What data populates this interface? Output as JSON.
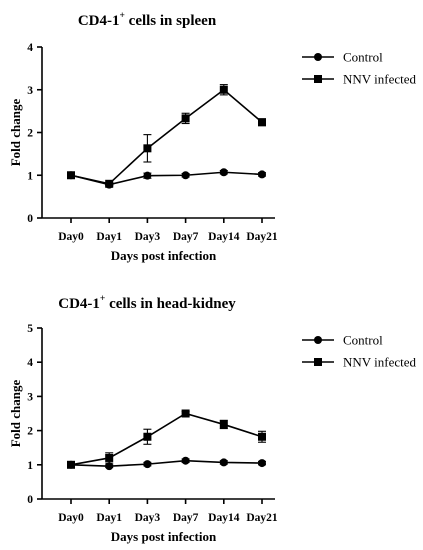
{
  "chart_data": [
    {
      "type": "line",
      "title_main": "CD4-1",
      "title_sup": "+",
      "title_rest": " cells in spleen",
      "xlabel": "Days post infection",
      "ylabel": "Fold change",
      "categories": [
        "Day0",
        "Day1",
        "Day3",
        "Day7",
        "Day14",
        "Day21"
      ],
      "ylim": [
        0,
        4
      ],
      "yticks": [
        "0",
        "1",
        "2",
        "3",
        "4"
      ],
      "legend_position": "top-right",
      "series": [
        {
          "name": "Control",
          "marker": "circle",
          "values": [
            1.0,
            0.78,
            0.99,
            1.0,
            1.07,
            1.02
          ],
          "errors": [
            0.0,
            0.03,
            0.06,
            0.04,
            0.04,
            0.04
          ]
        },
        {
          "name": "NNV infected",
          "marker": "square",
          "values": [
            1.0,
            0.8,
            1.63,
            2.33,
            3.0,
            2.24
          ],
          "errors": [
            0.0,
            0.03,
            0.32,
            0.12,
            0.12,
            0.08
          ]
        }
      ]
    },
    {
      "type": "line",
      "title_main": "CD4-1",
      "title_sup": "+",
      "title_rest": " cells in head-kidney",
      "xlabel": "Days post infection",
      "ylabel": "Fold change",
      "categories": [
        "Day0",
        "Day1",
        "Day3",
        "Day7",
        "Day14",
        "Day21"
      ],
      "ylim": [
        0,
        5
      ],
      "yticks": [
        "0",
        "1",
        "2",
        "3",
        "4",
        "5"
      ],
      "legend_position": "top-right",
      "series": [
        {
          "name": "Control",
          "marker": "circle",
          "values": [
            1.0,
            0.96,
            1.02,
            1.12,
            1.07,
            1.05
          ],
          "errors": [
            0.0,
            0.04,
            0.05,
            0.05,
            0.05,
            0.05
          ]
        },
        {
          "name": "NNV infected",
          "marker": "square",
          "values": [
            1.0,
            1.2,
            1.82,
            2.5,
            2.18,
            1.82
          ],
          "errors": [
            0.0,
            0.15,
            0.22,
            0.06,
            0.12,
            0.16
          ]
        }
      ]
    }
  ]
}
